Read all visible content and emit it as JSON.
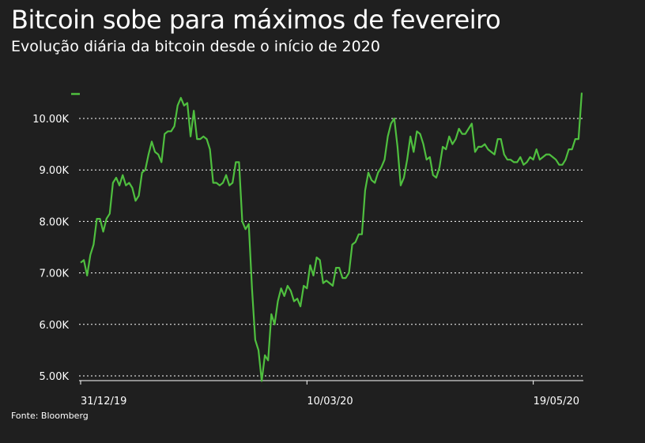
{
  "title": "Bitcoin sobe para máximos de fevereiro",
  "subtitle": "Evolução diária da bitcoin desde o início de 2020",
  "source": "Fonte: Bloomberg",
  "colors": {
    "background": "#1f1f1f",
    "line": "#4fbf3f",
    "grid": "#ffffff"
  },
  "chart_data": {
    "type": "line",
    "title": "Bitcoin sobe para máximos de fevereiro",
    "subtitle": "Evolução diária da bitcoin desde o início de 2020",
    "xlabel": "",
    "ylabel": "",
    "ylim": [
      4900,
      10600
    ],
    "grid": true,
    "legend": "top-left",
    "y_ticks": [
      {
        "value": 5000,
        "label": "5.00K"
      },
      {
        "value": 6000,
        "label": "6.00K"
      },
      {
        "value": 7000,
        "label": "7.00K"
      },
      {
        "value": 8000,
        "label": "8.00K"
      },
      {
        "value": 9000,
        "label": "9.00K"
      },
      {
        "value": 10000,
        "label": "10.00K"
      }
    ],
    "x_ticks": [
      {
        "index": 0,
        "label": "31/12/19"
      },
      {
        "index": 70,
        "label": "10/03/20"
      },
      {
        "index": 140,
        "label": "19/05/20"
      }
    ],
    "series": [
      {
        "values": [
          7200,
          7250,
          6950,
          7350,
          7550,
          8050,
          8050,
          7800,
          8050,
          8150,
          8750,
          8850,
          8700,
          8900,
          8700,
          8750,
          8650,
          8400,
          8500,
          8950,
          9000,
          9300,
          9550,
          9350,
          9300,
          9150,
          9700,
          9750,
          9750,
          9850,
          10250,
          10400,
          10250,
          10300,
          9650,
          10150,
          9600,
          9600,
          9650,
          9600,
          9400,
          8750,
          8750,
          8700,
          8750,
          8900,
          8700,
          8750,
          9150,
          9150,
          8000,
          7850,
          7950,
          6700,
          5700,
          5500,
          4900,
          5400,
          5300,
          6200,
          6000,
          6450,
          6700,
          6550,
          6750,
          6650,
          6450,
          6500,
          6350,
          6750,
          6700,
          7150,
          6950,
          7300,
          7250,
          6800,
          6850,
          6800,
          6750,
          7100,
          7100,
          6900,
          6900,
          7000,
          7550,
          7600,
          7750,
          7750,
          8600,
          8950,
          8800,
          8750,
          8950,
          9050,
          9200,
          9650,
          9900,
          10000,
          9450,
          8700,
          8850,
          9200,
          9650,
          9350,
          9750,
          9700,
          9500,
          9200,
          9250,
          8900,
          8850,
          9050,
          9450,
          9400,
          9650,
          9500,
          9600,
          9800,
          9700,
          9700,
          9800,
          9900,
          9350,
          9450,
          9450,
          9500,
          9400,
          9350,
          9300,
          9600,
          9600,
          9300,
          9200,
          9200,
          9150,
          9150,
          9250,
          9100,
          9150,
          9250,
          9200,
          9400,
          9200,
          9250,
          9300,
          9300,
          9250,
          9200,
          9100,
          9100,
          9200,
          9400,
          9400,
          9600,
          9600,
          10500
        ]
      }
    ]
  }
}
